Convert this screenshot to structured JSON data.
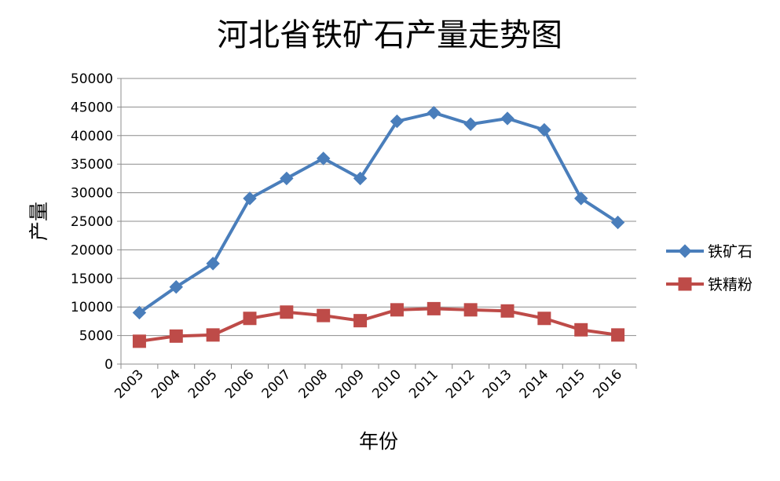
{
  "chart_data": {
    "type": "line",
    "title": "河北省铁矿石产量走势图",
    "xlabel": "年份",
    "ylabel": "产量",
    "categories": [
      "2003",
      "2004",
      "2005",
      "2006",
      "2007",
      "2008",
      "2009",
      "2010",
      "2011",
      "2012",
      "2013",
      "2014",
      "2015",
      "2016"
    ],
    "ylim": [
      0,
      50000
    ],
    "yticks": [
      0,
      5000,
      10000,
      15000,
      20000,
      25000,
      30000,
      35000,
      40000,
      45000,
      50000
    ],
    "grid": true,
    "legend": "right",
    "series": [
      {
        "name": "铁矿石",
        "color": "#4a7ebb",
        "marker": "diamond",
        "values": [
          9000,
          13500,
          17600,
          29000,
          32500,
          36000,
          32500,
          42500,
          44000,
          42000,
          43000,
          41000,
          29000,
          24800
        ]
      },
      {
        "name": "铁精粉",
        "color": "#be4b48",
        "marker": "square",
        "values": [
          4000,
          4900,
          5100,
          8000,
          9100,
          8500,
          7600,
          9500,
          9700,
          9500,
          9300,
          8000,
          6000,
          5100
        ]
      }
    ]
  }
}
